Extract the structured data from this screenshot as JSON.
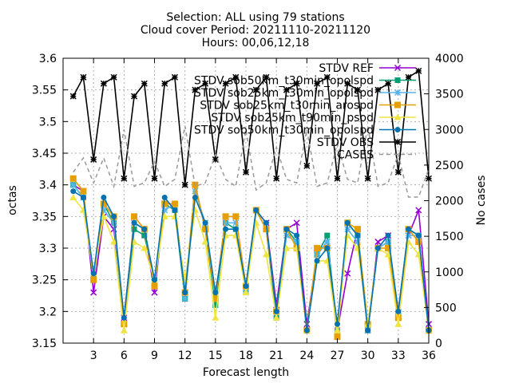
{
  "chart_data": {
    "type": "line",
    "title_lines": [
      "Selection: ALL using    79 stations",
      "Cloud cover   Period: 20211110-20211120",
      "Hours: 00,06,12,18"
    ],
    "xlabel": "Forecast length",
    "ylabel": "octas",
    "y2label": "No cases",
    "xlim": [
      0,
      36
    ],
    "ylim": [
      3.15,
      3.6
    ],
    "y2lim": [
      0,
      4000
    ],
    "xticks": [
      3,
      6,
      9,
      12,
      15,
      18,
      21,
      24,
      27,
      30,
      33,
      36
    ],
    "yticks": [
      3.15,
      3.2,
      3.25,
      3.3,
      3.35,
      3.4,
      3.45,
      3.5,
      3.55,
      3.6
    ],
    "y2ticks": [
      0,
      500,
      1000,
      1500,
      2000,
      2500,
      3000,
      3500,
      4000
    ],
    "grid": true,
    "legend_position": "top-right",
    "x": [
      1,
      2,
      3,
      4,
      5,
      6,
      7,
      8,
      9,
      10,
      11,
      12,
      13,
      14,
      15,
      16,
      17,
      18,
      19,
      20,
      21,
      22,
      23,
      24,
      25,
      26,
      27,
      28,
      29,
      30,
      31,
      32,
      33,
      34,
      35,
      36
    ],
    "series": [
      {
        "name": "STDV REF",
        "color": "#9400d3",
        "marker": "cross",
        "axis": "y",
        "values": [
          3.4,
          3.39,
          3.23,
          3.35,
          3.33,
          3.19,
          3.34,
          3.33,
          3.23,
          3.37,
          3.37,
          3.22,
          3.4,
          3.33,
          3.22,
          3.35,
          3.35,
          3.24,
          3.36,
          3.34,
          3.21,
          3.33,
          3.34,
          3.18,
          3.29,
          3.31,
          3.17,
          3.26,
          3.33,
          3.17,
          3.31,
          3.32,
          3.19,
          3.32,
          3.36,
          3.18
        ]
      },
      {
        "name": "STDV sob50km_t30min_opolspd",
        "color": "#009e73",
        "marker": "filled-square",
        "axis": "y",
        "values": [
          3.4,
          3.38,
          3.25,
          3.37,
          3.34,
          3.18,
          3.33,
          3.32,
          3.25,
          3.37,
          3.36,
          3.22,
          3.4,
          3.33,
          3.21,
          3.34,
          3.33,
          3.23,
          3.36,
          3.33,
          3.19,
          3.33,
          3.31,
          3.17,
          3.29,
          3.32,
          3.17,
          3.34,
          3.32,
          3.17,
          3.3,
          3.31,
          3.2,
          3.33,
          3.32,
          3.17
        ]
      },
      {
        "name": "STDV sob25km_t30min_opolspd",
        "color": "#56b4e9",
        "marker": "star",
        "axis": "y",
        "values": [
          3.4,
          3.38,
          3.25,
          3.36,
          3.34,
          3.18,
          3.34,
          3.33,
          3.24,
          3.36,
          3.37,
          3.22,
          3.39,
          3.34,
          3.22,
          3.34,
          3.34,
          3.23,
          3.36,
          3.33,
          3.2,
          3.32,
          3.31,
          3.17,
          3.29,
          3.31,
          3.17,
          3.33,
          3.31,
          3.17,
          3.3,
          3.31,
          3.2,
          3.32,
          3.32,
          3.17
        ]
      },
      {
        "name": "STDV sob25km_t30min_arospd",
        "color": "#e69f00",
        "marker": "square",
        "axis": "y",
        "values": [
          3.41,
          3.39,
          3.25,
          3.37,
          3.35,
          3.18,
          3.35,
          3.33,
          3.24,
          3.37,
          3.37,
          3.23,
          3.4,
          3.33,
          3.22,
          3.35,
          3.35,
          3.24,
          3.36,
          3.33,
          3.2,
          3.33,
          3.3,
          3.17,
          3.3,
          3.3,
          3.16,
          3.34,
          3.33,
          3.18,
          3.3,
          3.3,
          3.19,
          3.33,
          3.31,
          3.17
        ]
      },
      {
        "name": "STDV sob25km_t90min_psod",
        "color": "#f0e442",
        "marker": "filled-triangle",
        "axis": "y",
        "values": [
          3.38,
          3.36,
          3.26,
          3.35,
          3.31,
          3.17,
          3.31,
          3.3,
          3.25,
          3.35,
          3.35,
          3.25,
          3.36,
          3.31,
          3.19,
          3.32,
          3.32,
          3.23,
          3.34,
          3.29,
          3.19,
          3.3,
          3.3,
          3.17,
          3.28,
          3.28,
          3.17,
          3.32,
          3.3,
          3.18,
          3.3,
          3.29,
          3.18,
          3.31,
          3.29,
          3.17
        ]
      },
      {
        "name": "STDV sob50km_t30min_opolspd",
        "color": "#0072b2",
        "marker": "circle",
        "axis": "y",
        "values": [
          3.39,
          3.38,
          3.26,
          3.38,
          3.35,
          3.19,
          3.34,
          3.33,
          3.25,
          3.38,
          3.36,
          3.23,
          3.38,
          3.34,
          3.23,
          3.33,
          3.33,
          3.24,
          3.36,
          3.34,
          3.2,
          3.33,
          3.32,
          3.17,
          3.28,
          3.3,
          3.18,
          3.34,
          3.32,
          3.17,
          3.3,
          3.32,
          3.2,
          3.33,
          3.32,
          3.17
        ]
      },
      {
        "name": "STDV OBS",
        "color": "#000000",
        "marker": "star",
        "axis": "y",
        "values": [
          3.54,
          3.57,
          3.44,
          3.56,
          3.57,
          3.41,
          3.54,
          3.56,
          3.41,
          3.56,
          3.57,
          3.4,
          3.55,
          3.56,
          3.44,
          3.56,
          3.57,
          3.42,
          3.55,
          3.57,
          3.41,
          3.55,
          3.56,
          3.43,
          3.56,
          3.57,
          3.41,
          3.56,
          3.55,
          3.41,
          3.55,
          3.56,
          3.42,
          3.57,
          3.58,
          3.41
        ]
      },
      {
        "name": "CASES",
        "color": "#999999",
        "marker": "none",
        "dashed": true,
        "axis": "y2",
        "values": [
          2400,
          2600,
          2250,
          2600,
          2200,
          3000,
          2200,
          2250,
          2550,
          2200,
          2300,
          3050,
          2200,
          2250,
          2650,
          2300,
          2200,
          3000,
          2150,
          2250,
          2750,
          2300,
          2250,
          3000,
          2200,
          2250,
          2800,
          2300,
          2250,
          3050,
          2200,
          2250,
          2650,
          2050,
          2050,
          2450
        ]
      }
    ],
    "legend_labels": [
      "STDV REF",
      "STDV sob50km_t30min_opolspd",
      "STDV sob25km_t30min_opolspd",
      "STDV sob25km_t30min_arospd",
      "STDV sob25km_t90min_psod",
      "STDV sob50km_t30min_opolspd",
      "STDV OBS",
      "CASES"
    ]
  }
}
